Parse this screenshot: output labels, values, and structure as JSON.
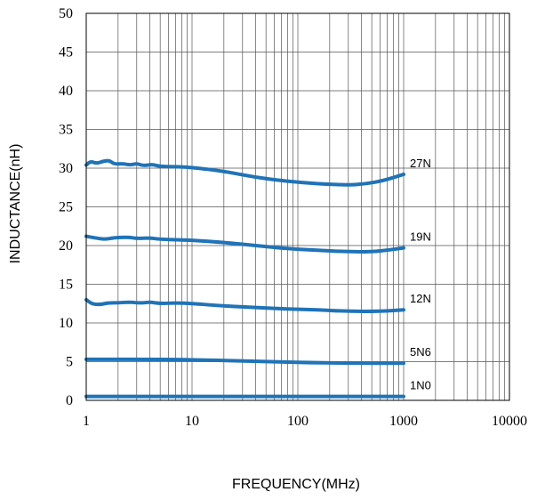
{
  "chart_data": {
    "type": "line",
    "title": "",
    "xlabel": "FREQUENCY(MHz)",
    "ylabel": "INDUCTANCE(nH)",
    "xscale": "log",
    "xlim": [
      1,
      10000
    ],
    "ylim": [
      0,
      50
    ],
    "grid": true,
    "x_tick_labels": [
      "1",
      "10",
      "100",
      "1000",
      "10000"
    ],
    "y_tick_labels": [
      "0",
      "5",
      "10",
      "15",
      "20",
      "25",
      "30",
      "35",
      "40",
      "45",
      "50"
    ],
    "line_color": "#1f73b7",
    "series": [
      {
        "name": "27N",
        "points": [
          [
            1,
            30.4
          ],
          [
            1.1,
            30.9
          ],
          [
            1.25,
            30.6
          ],
          [
            1.45,
            30.9
          ],
          [
            1.65,
            31.0
          ],
          [
            1.85,
            30.5
          ],
          [
            2.2,
            30.6
          ],
          [
            2.6,
            30.4
          ],
          [
            3.0,
            30.6
          ],
          [
            3.5,
            30.3
          ],
          [
            4.2,
            30.5
          ],
          [
            5,
            30.2
          ],
          [
            7,
            30.2
          ],
          [
            10,
            30.1
          ],
          [
            20,
            29.6
          ],
          [
            40,
            28.8
          ],
          [
            80,
            28.3
          ],
          [
            150,
            28.0
          ],
          [
            300,
            27.8
          ],
          [
            450,
            28.0
          ],
          [
            650,
            28.4
          ],
          [
            1000,
            29.2
          ]
        ]
      },
      {
        "name": "19N",
        "points": [
          [
            1,
            21.2
          ],
          [
            1.2,
            21.0
          ],
          [
            1.5,
            20.8
          ],
          [
            1.8,
            21.0
          ],
          [
            2.5,
            21.1
          ],
          [
            3,
            20.9
          ],
          [
            4,
            21.0
          ],
          [
            5,
            20.8
          ],
          [
            10,
            20.7
          ],
          [
            20,
            20.4
          ],
          [
            40,
            20.0
          ],
          [
            80,
            19.6
          ],
          [
            150,
            19.4
          ],
          [
            300,
            19.2
          ],
          [
            500,
            19.2
          ],
          [
            700,
            19.4
          ],
          [
            1000,
            19.7
          ]
        ]
      },
      {
        "name": "12N",
        "points": [
          [
            1,
            13.0
          ],
          [
            1.15,
            12.4
          ],
          [
            1.4,
            12.4
          ],
          [
            1.6,
            12.6
          ],
          [
            2.0,
            12.6
          ],
          [
            2.6,
            12.7
          ],
          [
            3.0,
            12.6
          ],
          [
            3.5,
            12.6
          ],
          [
            4.0,
            12.7
          ],
          [
            5,
            12.5
          ],
          [
            7,
            12.6
          ],
          [
            10,
            12.5
          ],
          [
            20,
            12.2
          ],
          [
            40,
            12.0
          ],
          [
            80,
            11.8
          ],
          [
            150,
            11.7
          ],
          [
            300,
            11.5
          ],
          [
            600,
            11.5
          ],
          [
            1000,
            11.7
          ]
        ]
      },
      {
        "name": "5N6",
        "points": [
          [
            1,
            5.3
          ],
          [
            5,
            5.3
          ],
          [
            10,
            5.25
          ],
          [
            30,
            5.1
          ],
          [
            100,
            4.9
          ],
          [
            300,
            4.8
          ],
          [
            1000,
            4.8
          ]
        ]
      },
      {
        "name": "1N0",
        "points": [
          [
            1,
            0.5
          ],
          [
            10,
            0.5
          ],
          [
            100,
            0.5
          ],
          [
            1000,
            0.5
          ]
        ]
      }
    ]
  }
}
